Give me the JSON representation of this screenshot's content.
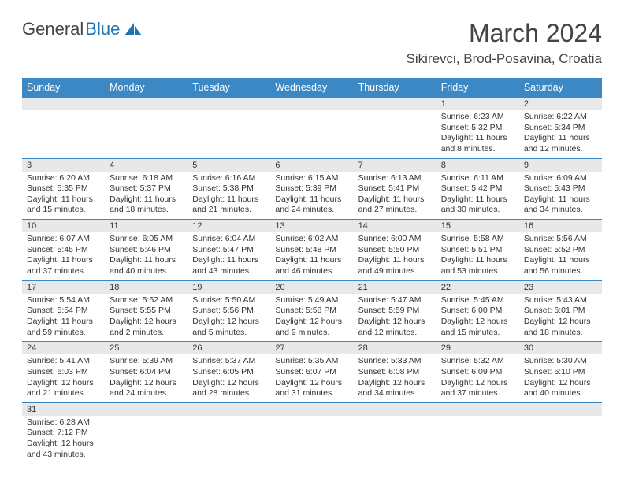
{
  "logo": {
    "text1": "General",
    "text2": "Blue"
  },
  "title": "March 2024",
  "location": "Sikirevci, Brod-Posavina, Croatia",
  "colors": {
    "header_bg": "#3b88c4",
    "header_text": "#ffffff",
    "daynum_bg": "#e8e8e8",
    "border": "#3b88c4",
    "logo_blue": "#1f74b6",
    "text": "#333333",
    "background": "#ffffff"
  },
  "fonts": {
    "title_size": 32,
    "location_size": 17,
    "dayheader_size": 12.5,
    "daynum_size": 11,
    "body_size": 10.5
  },
  "day_headers": [
    "Sunday",
    "Monday",
    "Tuesday",
    "Wednesday",
    "Thursday",
    "Friday",
    "Saturday"
  ],
  "weeks": [
    [
      null,
      null,
      null,
      null,
      null,
      {
        "n": "1",
        "sunrise": "6:23 AM",
        "sunset": "5:32 PM",
        "daylight": "11 hours and 8 minutes."
      },
      {
        "n": "2",
        "sunrise": "6:22 AM",
        "sunset": "5:34 PM",
        "daylight": "11 hours and 12 minutes."
      }
    ],
    [
      {
        "n": "3",
        "sunrise": "6:20 AM",
        "sunset": "5:35 PM",
        "daylight": "11 hours and 15 minutes."
      },
      {
        "n": "4",
        "sunrise": "6:18 AM",
        "sunset": "5:37 PM",
        "daylight": "11 hours and 18 minutes."
      },
      {
        "n": "5",
        "sunrise": "6:16 AM",
        "sunset": "5:38 PM",
        "daylight": "11 hours and 21 minutes."
      },
      {
        "n": "6",
        "sunrise": "6:15 AM",
        "sunset": "5:39 PM",
        "daylight": "11 hours and 24 minutes."
      },
      {
        "n": "7",
        "sunrise": "6:13 AM",
        "sunset": "5:41 PM",
        "daylight": "11 hours and 27 minutes."
      },
      {
        "n": "8",
        "sunrise": "6:11 AM",
        "sunset": "5:42 PM",
        "daylight": "11 hours and 30 minutes."
      },
      {
        "n": "9",
        "sunrise": "6:09 AM",
        "sunset": "5:43 PM",
        "daylight": "11 hours and 34 minutes."
      }
    ],
    [
      {
        "n": "10",
        "sunrise": "6:07 AM",
        "sunset": "5:45 PM",
        "daylight": "11 hours and 37 minutes."
      },
      {
        "n": "11",
        "sunrise": "6:05 AM",
        "sunset": "5:46 PM",
        "daylight": "11 hours and 40 minutes."
      },
      {
        "n": "12",
        "sunrise": "6:04 AM",
        "sunset": "5:47 PM",
        "daylight": "11 hours and 43 minutes."
      },
      {
        "n": "13",
        "sunrise": "6:02 AM",
        "sunset": "5:48 PM",
        "daylight": "11 hours and 46 minutes."
      },
      {
        "n": "14",
        "sunrise": "6:00 AM",
        "sunset": "5:50 PM",
        "daylight": "11 hours and 49 minutes."
      },
      {
        "n": "15",
        "sunrise": "5:58 AM",
        "sunset": "5:51 PM",
        "daylight": "11 hours and 53 minutes."
      },
      {
        "n": "16",
        "sunrise": "5:56 AM",
        "sunset": "5:52 PM",
        "daylight": "11 hours and 56 minutes."
      }
    ],
    [
      {
        "n": "17",
        "sunrise": "5:54 AM",
        "sunset": "5:54 PM",
        "daylight": "11 hours and 59 minutes."
      },
      {
        "n": "18",
        "sunrise": "5:52 AM",
        "sunset": "5:55 PM",
        "daylight": "12 hours and 2 minutes."
      },
      {
        "n": "19",
        "sunrise": "5:50 AM",
        "sunset": "5:56 PM",
        "daylight": "12 hours and 5 minutes."
      },
      {
        "n": "20",
        "sunrise": "5:49 AM",
        "sunset": "5:58 PM",
        "daylight": "12 hours and 9 minutes."
      },
      {
        "n": "21",
        "sunrise": "5:47 AM",
        "sunset": "5:59 PM",
        "daylight": "12 hours and 12 minutes."
      },
      {
        "n": "22",
        "sunrise": "5:45 AM",
        "sunset": "6:00 PM",
        "daylight": "12 hours and 15 minutes."
      },
      {
        "n": "23",
        "sunrise": "5:43 AM",
        "sunset": "6:01 PM",
        "daylight": "12 hours and 18 minutes."
      }
    ],
    [
      {
        "n": "24",
        "sunrise": "5:41 AM",
        "sunset": "6:03 PM",
        "daylight": "12 hours and 21 minutes."
      },
      {
        "n": "25",
        "sunrise": "5:39 AM",
        "sunset": "6:04 PM",
        "daylight": "12 hours and 24 minutes."
      },
      {
        "n": "26",
        "sunrise": "5:37 AM",
        "sunset": "6:05 PM",
        "daylight": "12 hours and 28 minutes."
      },
      {
        "n": "27",
        "sunrise": "5:35 AM",
        "sunset": "6:07 PM",
        "daylight": "12 hours and 31 minutes."
      },
      {
        "n": "28",
        "sunrise": "5:33 AM",
        "sunset": "6:08 PM",
        "daylight": "12 hours and 34 minutes."
      },
      {
        "n": "29",
        "sunrise": "5:32 AM",
        "sunset": "6:09 PM",
        "daylight": "12 hours and 37 minutes."
      },
      {
        "n": "30",
        "sunrise": "5:30 AM",
        "sunset": "6:10 PM",
        "daylight": "12 hours and 40 minutes."
      }
    ],
    [
      {
        "n": "31",
        "sunrise": "6:28 AM",
        "sunset": "7:12 PM",
        "daylight": "12 hours and 43 minutes."
      },
      null,
      null,
      null,
      null,
      null,
      null
    ]
  ],
  "labels": {
    "sunrise": "Sunrise:",
    "sunset": "Sunset:",
    "daylight": "Daylight:"
  }
}
